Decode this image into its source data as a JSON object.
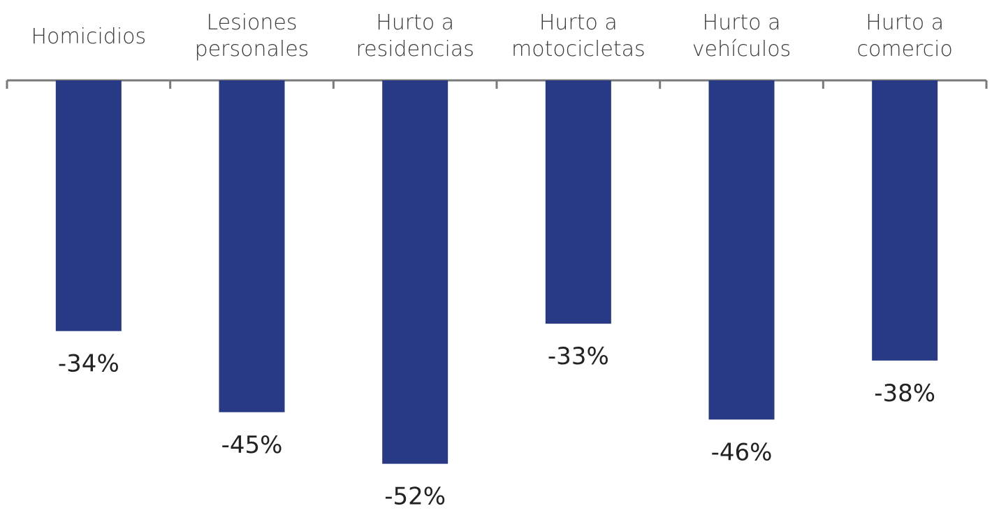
{
  "chart_data": {
    "type": "bar",
    "categories": [
      [
        "Homicidios"
      ],
      [
        "Lesiones",
        "personales"
      ],
      [
        "Hurto a",
        "residencias"
      ],
      [
        "Hurto a",
        "motocicletas"
      ],
      [
        "Hurto a",
        "vehículos"
      ],
      [
        "Hurto a",
        "comercio"
      ]
    ],
    "values": [
      -34,
      -45,
      -52,
      -33,
      -46,
      -38
    ],
    "value_labels": [
      "-34%",
      "-45%",
      "-52%",
      "-33%",
      "-46%",
      "-38%"
    ],
    "bar_color": "#283A85",
    "axis_color": "#7A7A7A",
    "category_axis_position": "top",
    "grid": false,
    "legend": "none"
  }
}
